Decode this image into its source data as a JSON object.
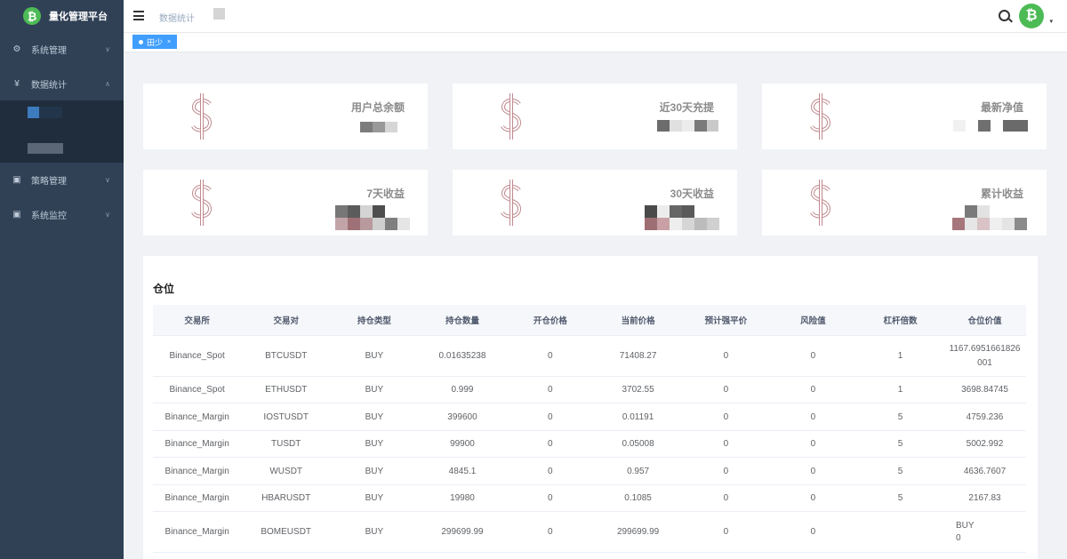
{
  "app": {
    "logo_glyph": "₿",
    "title": "量化管理平台"
  },
  "sidebar": {
    "items": [
      {
        "label": "系统管理",
        "icon": "gear-icon",
        "glyph": "⚙",
        "arrow": "∨"
      },
      {
        "label": "数据统计",
        "icon": "yen-icon",
        "glyph": "¥",
        "arrow": "∧"
      },
      {
        "label": "策略管理",
        "icon": "monitor-icon",
        "glyph": "▣",
        "arrow": "∨"
      },
      {
        "label": "系统监控",
        "icon": "monitor-icon",
        "glyph": "▣",
        "arrow": "∨"
      }
    ]
  },
  "header": {
    "breadcrumb": "数据统计",
    "avatar_glyph": "₿",
    "caret": "▾"
  },
  "tags": {
    "active": "田少",
    "close": "×"
  },
  "cards": [
    {
      "label": "用户总余额"
    },
    {
      "label": "近30天充提"
    },
    {
      "label": "最新净值"
    },
    {
      "label": "7天收益"
    },
    {
      "label": "30天收益"
    },
    {
      "label": "累计收益"
    }
  ],
  "positions": {
    "title": "仓位",
    "columns": [
      "交易所",
      "交易对",
      "持仓类型",
      "持仓数量",
      "开仓价格",
      "当前价格",
      "预计强平价",
      "风险值",
      "杠杆倍数",
      "仓位价值"
    ],
    "rows": [
      [
        "Binance_Spot",
        "BTCUSDT",
        "BUY",
        "0.01635238",
        "0",
        "71408.27",
        "0",
        "0",
        "1",
        "1167.6951661826001"
      ],
      [
        "Binance_Spot",
        "ETHUSDT",
        "BUY",
        "0.999",
        "0",
        "3702.55",
        "0",
        "0",
        "1",
        "3698.84745"
      ],
      [
        "Binance_Margin",
        "IOSTUSDT",
        "BUY",
        "399600",
        "0",
        "0.01191",
        "0",
        "0",
        "5",
        "4759.236"
      ],
      [
        "Binance_Margin",
        "TUSDT",
        "BUY",
        "99900",
        "0",
        "0.05008",
        "0",
        "0",
        "5",
        "5002.992"
      ],
      [
        "Binance_Margin",
        "WUSDT",
        "BUY",
        "4845.1",
        "0",
        "0.957",
        "0",
        "0",
        "5",
        "4636.7607"
      ],
      [
        "Binance_Margin",
        "HBARUSDT",
        "BUY",
        "19980",
        "0",
        "0.1085",
        "0",
        "0",
        "5",
        "2167.83"
      ],
      [
        "Binance_Margin",
        "BOMEUSDT",
        "BUY",
        "299699.99",
        "0",
        "299699.99",
        "0",
        "0",
        "",
        "BUY\n0"
      ]
    ]
  },
  "colors": {
    "sidebar": "#304156",
    "submenu": "#1f2d3d",
    "accent": "#409eff",
    "brand_green": "#4dbb55",
    "dollar": "#c0898e"
  }
}
